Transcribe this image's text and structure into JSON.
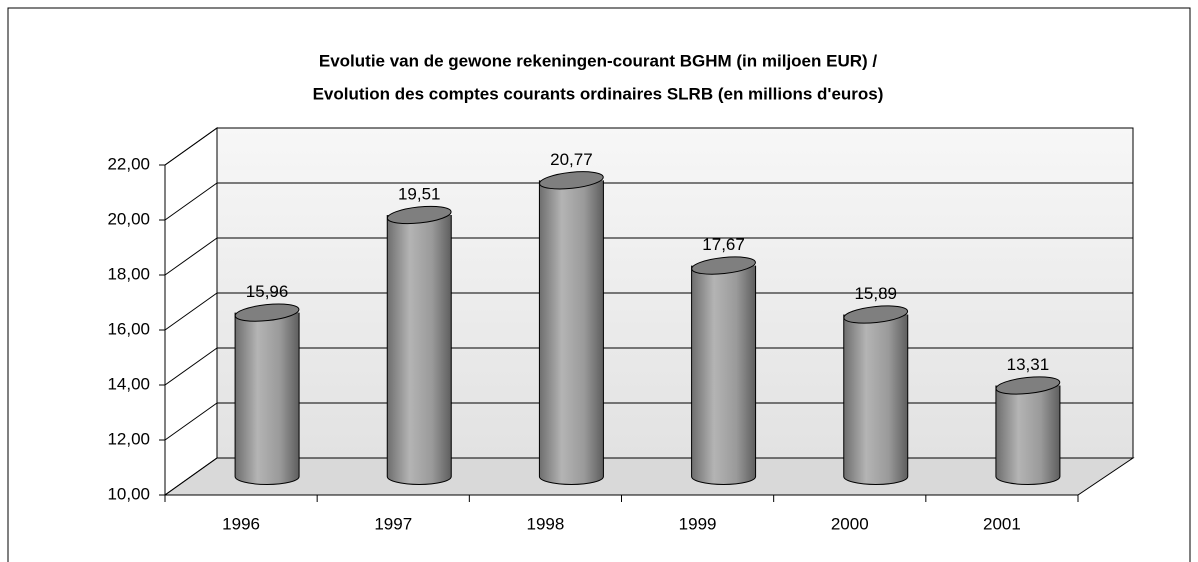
{
  "chart_data": {
    "type": "bar",
    "title": [
      "Evolutie van de gewone rekeningen-courant BGHM (in miljoen EUR) /",
      "Evolution des comptes courants ordinaires SLRB (en millions d'euros)"
    ],
    "categories": [
      "1996",
      "1997",
      "1998",
      "1999",
      "2000",
      "2001"
    ],
    "values": [
      15.96,
      19.51,
      20.77,
      17.67,
      15.89,
      13.31
    ],
    "value_labels": [
      "15,96",
      "19,51",
      "20,77",
      "17,67",
      "15,89",
      "13,31"
    ],
    "color": "#8c8c8c",
    "ylim": [
      10,
      22
    ],
    "yticks": [
      {
        "value": 10,
        "label": "10,00"
      },
      {
        "value": 12,
        "label": "12,00"
      },
      {
        "value": 14,
        "label": "14,00"
      },
      {
        "value": 16,
        "label": "16,00"
      },
      {
        "value": 18,
        "label": "18,00"
      },
      {
        "value": 20,
        "label": "20,00"
      },
      {
        "value": 22,
        "label": "22,00"
      }
    ],
    "grid": true
  }
}
